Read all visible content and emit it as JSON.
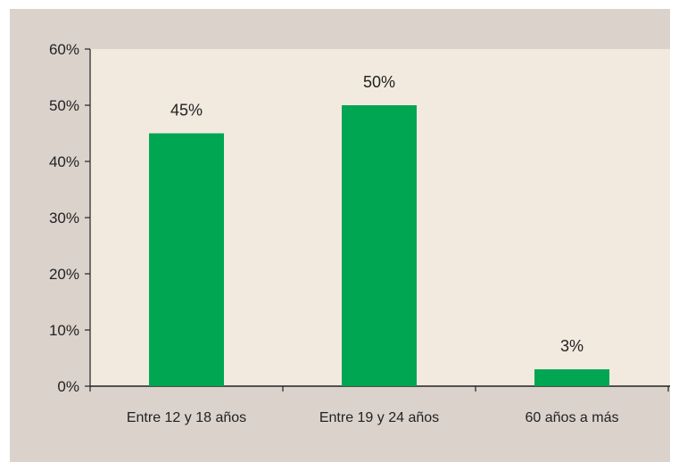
{
  "colors": {
    "frame_background": "#dbd2cc",
    "plot_background": "#f2e9df",
    "bar": "#00a651",
    "axis": "#222222",
    "text": "#222222"
  },
  "chart_data": {
    "type": "bar",
    "title": "",
    "xlabel": "",
    "ylabel": "",
    "categories": [
      "Entre 12 y 18 años",
      "Entre 19 y 24 años",
      "60 años a más"
    ],
    "values": [
      45,
      50,
      3
    ],
    "data_labels": [
      "45%",
      "50%",
      "3%"
    ],
    "ylim": [
      0,
      60
    ],
    "y_ticks": [
      0,
      10,
      20,
      30,
      40,
      50,
      60
    ],
    "y_tick_labels": [
      "0%",
      "10%",
      "20%",
      "30%",
      "40%",
      "50%",
      "60%"
    ],
    "grid": false,
    "legend": "none"
  }
}
